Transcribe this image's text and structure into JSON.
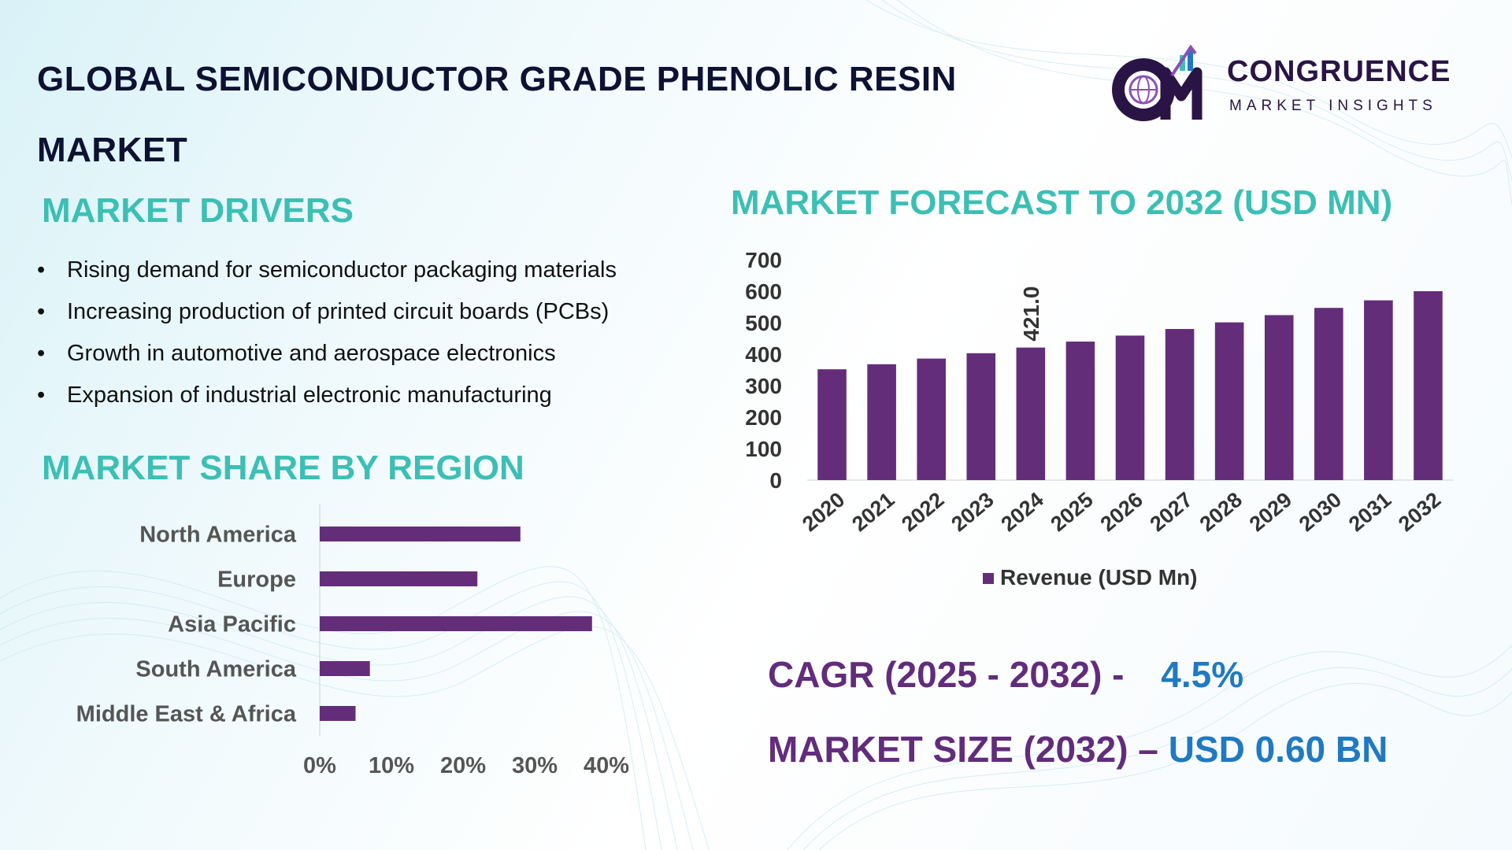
{
  "header": {
    "title_line1": "GLOBAL SEMICONDUCTOR GRADE PHENOLIC RESIN",
    "title_line2": "MARKET"
  },
  "logo": {
    "name": "CONGRUENCE",
    "tagline": "MARKET INSIGHTS",
    "icon": "globe-cm-monogram-icon"
  },
  "drivers": {
    "heading": "MARKET DRIVERS",
    "items": [
      "Rising demand for semiconductor packaging materials",
      "Increasing production of printed circuit boards (PCBs)",
      "Growth in automotive and aerospace electronics",
      "Expansion of industrial electronic manufacturing"
    ]
  },
  "region": {
    "heading": "MARKET SHARE BY REGION"
  },
  "forecast": {
    "heading": "MARKET FORECAST TO 2032 (USD MN)"
  },
  "stats": {
    "cagr_label": "CAGR (2025 - 2032) -",
    "cagr_value": "4.5%",
    "size_label": "MARKET SIZE (2032) –",
    "size_value": "USD 0.60 BN"
  },
  "colors": {
    "bar": "#642d7a",
    "heading_teal": "#3cbfb4",
    "title_navy": "#0d1233",
    "stat_purple": "#622c7c",
    "stat_blue": "#1f7ac1"
  },
  "chart_data": [
    {
      "type": "bar",
      "orientation": "vertical",
      "categories": [
        "2020",
        "2021",
        "2022",
        "2023",
        "2024",
        "2025",
        "2026",
        "2027",
        "2028",
        "2029",
        "2030",
        "2031",
        "2032"
      ],
      "series": [
        {
          "name": "Revenue (USD Mn)",
          "values": [
            352,
            368,
            386,
            403,
            421,
            440,
            459,
            480,
            501,
            524,
            547,
            571,
            600
          ]
        }
      ],
      "data_labels": [
        {
          "category": "2024",
          "text": "421.0"
        }
      ],
      "ylim": [
        0,
        700
      ],
      "yticks": [
        "0",
        "100",
        "200",
        "300",
        "400",
        "500",
        "600",
        "700"
      ],
      "grid": false,
      "legend": "bottom"
    },
    {
      "type": "bar",
      "orientation": "horizontal",
      "categories": [
        "North America",
        "Europe",
        "Asia Pacific",
        "South America",
        "Middle East & Africa"
      ],
      "values": [
        0.28,
        0.22,
        0.38,
        0.07,
        0.05
      ],
      "xlim": [
        0,
        0.4
      ],
      "xticks": [
        "0%",
        "10%",
        "20%",
        "30%",
        "40%"
      ],
      "grid": false
    }
  ]
}
